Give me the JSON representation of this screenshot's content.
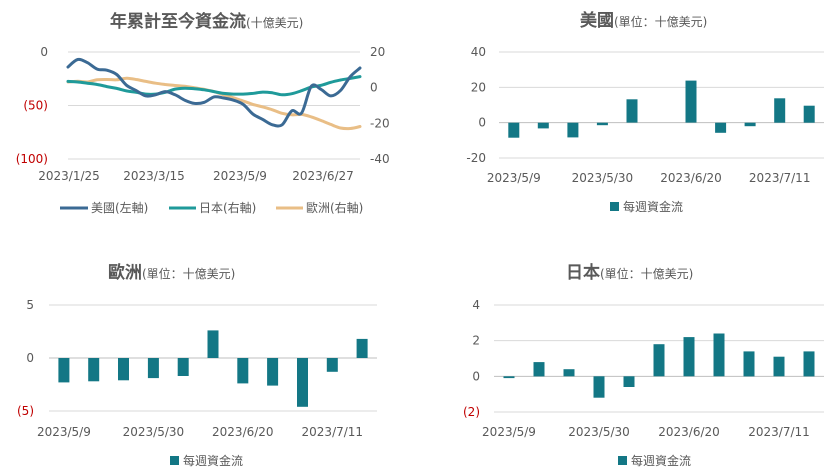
{
  "colors": {
    "us": "#3b6a94",
    "jp": "#1f9a9a",
    "eu": "#e9be86",
    "bar": "#137785",
    "red": "#c00000",
    "grid": "#d9d9d9",
    "axis": "#bfbfbf",
    "text": "#595959"
  },
  "chart_data": [
    {
      "type": "line",
      "title": "年累計至今資金流",
      "subtitle": "(十億美元)",
      "x_ticks": [
        "2023/1/25",
        "2023/3/15",
        "2023/5/9",
        "2023/6/27"
      ],
      "left_axis": {
        "ylim": [
          -100,
          0
        ],
        "ticks": [
          {
            "v": 0,
            "label": "0",
            "red": false
          },
          {
            "v": -50,
            "label": "(50)",
            "red": true
          },
          {
            "v": -100,
            "label": "(100)",
            "red": true
          }
        ]
      },
      "right_axis": {
        "ylim": [
          -40,
          20
        ],
        "ticks": [
          {
            "v": 20,
            "label": "20"
          },
          {
            "v": 0,
            "label": "0"
          },
          {
            "v": -20,
            "label": "-20"
          },
          {
            "v": -40,
            "label": "-40"
          }
        ]
      },
      "series": [
        {
          "name": "美國(左軸)",
          "axis": "left",
          "color_key": "us",
          "values": [
            -14,
            -7,
            -10,
            -16,
            -17,
            -21,
            -31,
            -36,
            -41,
            -40,
            -37,
            -40,
            -45,
            -48,
            -47,
            -42,
            -43,
            -45,
            -49,
            -58,
            -63,
            -68,
            -68,
            -55,
            -57,
            -32,
            -35,
            -41,
            -36,
            -23,
            -15
          ]
        },
        {
          "name": "日本(右軸)",
          "axis": "right",
          "color_key": "jp",
          "values": [
            3.5,
            3.2,
            2.5,
            1.8,
            0.6,
            -0.4,
            -1.8,
            -2.6,
            -3.6,
            -3.6,
            -2.6,
            -0.8,
            -0.3,
            -0.6,
            -1.2,
            -2.2,
            -3.2,
            -3.6,
            -3.6,
            -3.2,
            -2.5,
            -2.9,
            -4.0,
            -3.4,
            -1.7,
            0.3,
            1.3,
            3.0,
            4.3,
            5.2,
            6.2
          ]
        },
        {
          "name": "歐洲(右軸)",
          "axis": "right",
          "color_key": "eu",
          "values": [
            3.2,
            3.6,
            3.2,
            4.4,
            4.6,
            4.4,
            5.3,
            4.6,
            3.5,
            2.5,
            1.8,
            1.2,
            0.8,
            0.0,
            -1.0,
            -2.2,
            -4.0,
            -5.7,
            -7.5,
            -9.4,
            -10.8,
            -12.4,
            -14.4,
            -15.2,
            -15.0,
            -16.4,
            -18.4,
            -20.6,
            -22.6,
            -22.9,
            -21.8
          ]
        }
      ]
    },
    {
      "type": "bar",
      "title": "美國",
      "subtitle": "(單位：十億美元)",
      "legend": "每週資金流",
      "x_ticks": [
        "2023/5/9",
        "2023/5/30",
        "2023/6/20",
        "2023/7/11"
      ],
      "ylim": [
        -20,
        40
      ],
      "y_ticks": [
        {
          "v": 40,
          "label": "40"
        },
        {
          "v": 20,
          "label": "20"
        },
        {
          "v": 0,
          "label": "0"
        },
        {
          "v": -20,
          "label": "-20"
        }
      ],
      "values": [
        -8.5,
        -3.2,
        -8.3,
        -1.4,
        13.2,
        0,
        23.8,
        -5.7,
        -2.0,
        13.8,
        9.6
      ]
    },
    {
      "type": "bar",
      "title": "歐洲",
      "subtitle": "(單位：十億美元)",
      "legend": "每週資金流",
      "x_ticks": [
        "2023/5/9",
        "2023/5/30",
        "2023/6/20",
        "2023/7/11"
      ],
      "ylim": [
        -5,
        5
      ],
      "y_ticks": [
        {
          "v": 5,
          "label": "5",
          "red": false
        },
        {
          "v": 0,
          "label": "0",
          "red": false
        },
        {
          "v": -5,
          "label": "(5)",
          "red": true
        }
      ],
      "values": [
        -2.3,
        -2.2,
        -2.1,
        -1.9,
        -1.7,
        2.6,
        -2.4,
        -2.6,
        -4.6,
        -1.3,
        1.8
      ]
    },
    {
      "type": "bar",
      "title": "日本",
      "subtitle": "(單位：十億美元)",
      "legend": "每週資金流",
      "x_ticks": [
        "2023/5/9",
        "2023/5/30",
        "2023/6/20",
        "2023/7/11"
      ],
      "ylim": [
        -2,
        4
      ],
      "y_ticks": [
        {
          "v": 4,
          "label": "4",
          "red": false
        },
        {
          "v": 2,
          "label": "2",
          "red": false
        },
        {
          "v": 0,
          "label": "0",
          "red": false
        },
        {
          "v": -2,
          "label": "(2)",
          "red": true
        }
      ],
      "values": [
        -0.1,
        0.8,
        0.4,
        -1.2,
        -0.6,
        1.8,
        2.2,
        2.4,
        1.4,
        1.1,
        1.4
      ]
    }
  ]
}
